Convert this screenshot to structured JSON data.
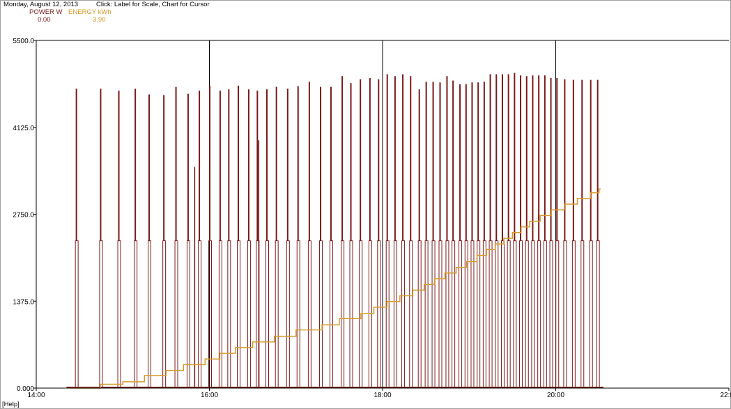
{
  "header": {
    "status": "Monday, August 12, 2013",
    "instructions": "Click: Label for Scale, Chart for Cursor",
    "power_label": "POWER W",
    "power_value": "0.00",
    "energy_label": "ENERGY kWh",
    "energy_value": "3.90"
  },
  "footer": {
    "help": "[Help]"
  },
  "colors": {
    "power": "#7a1a1a",
    "energy": "#d79a2a"
  },
  "chart_data": {
    "type": "line",
    "xlabel": "",
    "ylabel": "",
    "x_ticks": [
      "14:00",
      "16:00",
      "18:00",
      "20:00",
      "22:00"
    ],
    "y_ticks": [
      "0.000",
      "1375.0",
      "2750.0",
      "4125.0",
      "5500.0"
    ],
    "xlim": [
      14,
      22
    ],
    "ylim": [
      0,
      5500
    ],
    "cursor_lines": [
      16,
      18,
      20
    ],
    "series": [
      {
        "name": "POWER W",
        "color": "#7a1a1a",
        "base": 2330,
        "spikes": [
          {
            "t": 14.46,
            "y": 4730
          },
          {
            "t": 14.74,
            "y": 4730
          },
          {
            "t": 14.95,
            "y": 4700
          },
          {
            "t": 15.14,
            "y": 4730
          },
          {
            "t": 15.3,
            "y": 4640
          },
          {
            "t": 15.47,
            "y": 4630
          },
          {
            "t": 15.61,
            "y": 4760
          },
          {
            "t": 15.75,
            "y": 4650
          },
          {
            "t": 15.88,
            "y": 4700
          },
          {
            "t": 16.0,
            "y": 4780
          },
          {
            "t": 16.12,
            "y": 4700
          },
          {
            "t": 16.22,
            "y": 4720
          },
          {
            "t": 16.33,
            "y": 4780
          },
          {
            "t": 16.45,
            "y": 4720
          },
          {
            "t": 16.55,
            "y": 4700
          },
          {
            "t": 16.66,
            "y": 4720
          },
          {
            "t": 16.77,
            "y": 4760
          },
          {
            "t": 16.9,
            "y": 4730
          },
          {
            "t": 17.02,
            "y": 4770
          },
          {
            "t": 17.15,
            "y": 4840
          },
          {
            "t": 17.28,
            "y": 4760
          },
          {
            "t": 17.4,
            "y": 4760
          },
          {
            "t": 17.53,
            "y": 4930
          },
          {
            "t": 17.63,
            "y": 4820
          },
          {
            "t": 17.74,
            "y": 4880
          },
          {
            "t": 17.85,
            "y": 4900
          },
          {
            "t": 17.95,
            "y": 4880
          },
          {
            "t": 18.05,
            "y": 4960
          },
          {
            "t": 18.14,
            "y": 4930
          },
          {
            "t": 18.23,
            "y": 4960
          },
          {
            "t": 18.32,
            "y": 4930
          },
          {
            "t": 18.42,
            "y": 4720
          },
          {
            "t": 18.5,
            "y": 4840
          },
          {
            "t": 18.58,
            "y": 4840
          },
          {
            "t": 18.66,
            "y": 4830
          },
          {
            "t": 18.74,
            "y": 4930
          },
          {
            "t": 18.81,
            "y": 4860
          },
          {
            "t": 18.89,
            "y": 4800
          },
          {
            "t": 18.96,
            "y": 4800
          },
          {
            "t": 19.03,
            "y": 4830
          },
          {
            "t": 19.1,
            "y": 4830
          },
          {
            "t": 19.17,
            "y": 4840
          },
          {
            "t": 19.24,
            "y": 4960
          },
          {
            "t": 19.31,
            "y": 4960
          },
          {
            "t": 19.38,
            "y": 4960
          },
          {
            "t": 19.45,
            "y": 4960
          },
          {
            "t": 19.52,
            "y": 4980
          },
          {
            "t": 19.59,
            "y": 4940
          },
          {
            "t": 19.66,
            "y": 4930
          },
          {
            "t": 19.73,
            "y": 4940
          },
          {
            "t": 19.8,
            "y": 4940
          },
          {
            "t": 19.87,
            "y": 4940
          },
          {
            "t": 19.94,
            "y": 4900
          },
          {
            "t": 20.01,
            "y": 4900
          },
          {
            "t": 20.1,
            "y": 4880
          },
          {
            "t": 20.2,
            "y": 4870
          },
          {
            "t": 20.3,
            "y": 4870
          },
          {
            "t": 20.4,
            "y": 4870
          },
          {
            "t": 20.48,
            "y": 4870
          }
        ],
        "extra_spikes": [
          {
            "t": 15.83,
            "y": 3500
          },
          {
            "t": 16.57,
            "y": 3920
          }
        ]
      },
      {
        "name": "ENERGY kWh",
        "color": "#d79a2a",
        "steps": [
          [
            14.4,
            0.0
          ],
          [
            14.74,
            0.06
          ],
          [
            15.0,
            0.1
          ],
          [
            15.25,
            0.2
          ],
          [
            15.5,
            0.28
          ],
          [
            15.7,
            0.37
          ],
          [
            15.95,
            0.46
          ],
          [
            16.12,
            0.55
          ],
          [
            16.3,
            0.64
          ],
          [
            16.5,
            0.73
          ],
          [
            16.75,
            0.82
          ],
          [
            17.0,
            0.92
          ],
          [
            17.3,
            1.0
          ],
          [
            17.5,
            1.1
          ],
          [
            17.75,
            1.18
          ],
          [
            17.9,
            1.28
          ],
          [
            18.05,
            1.37
          ],
          [
            18.2,
            1.46
          ],
          [
            18.35,
            1.55
          ],
          [
            18.48,
            1.64
          ],
          [
            18.6,
            1.73
          ],
          [
            18.72,
            1.82
          ],
          [
            18.85,
            1.91
          ],
          [
            18.97,
            2.0
          ],
          [
            19.09,
            2.1
          ],
          [
            19.2,
            2.19
          ],
          [
            19.3,
            2.28
          ],
          [
            19.4,
            2.37
          ],
          [
            19.5,
            2.46
          ],
          [
            19.6,
            2.55
          ],
          [
            19.7,
            2.64
          ],
          [
            19.82,
            2.73
          ],
          [
            19.95,
            2.82
          ],
          [
            20.1,
            2.91
          ],
          [
            20.25,
            3.0
          ],
          [
            20.4,
            3.09
          ],
          [
            20.5,
            3.15
          ],
          [
            20.52,
            3.15
          ]
        ],
        "y_scale_kWh_full": 5.5
      }
    ]
  }
}
